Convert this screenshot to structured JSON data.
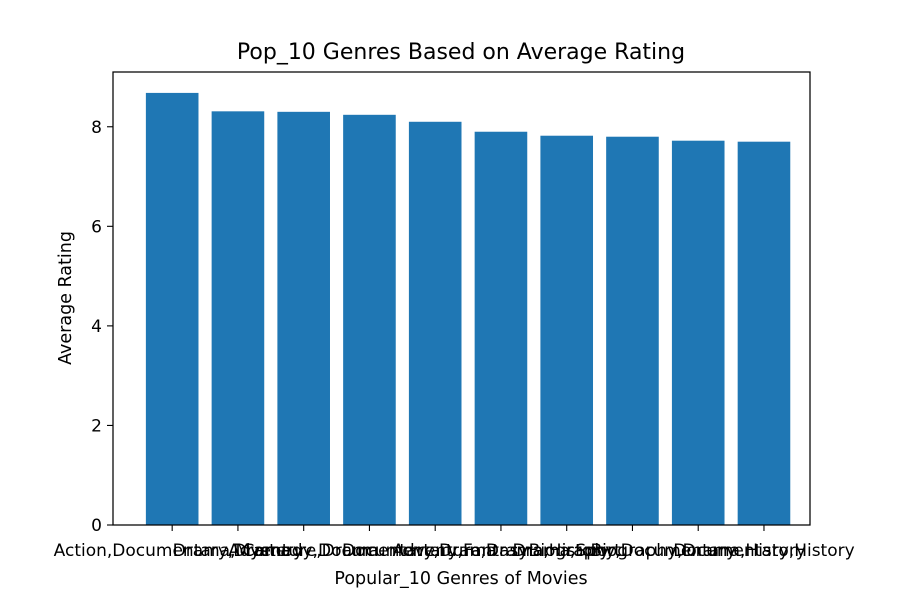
{
  "chart_data": {
    "type": "bar",
    "title": "Pop_10 Genres Based on Average Rating",
    "xlabel": "Popular_10 Genres of Movies",
    "ylabel": "Average Rating",
    "categories": [
      "Action,Documentary,Drama",
      "Drama,Mystery",
      "Adventure,Drama",
      "Comedy,Documentary,Drama",
      "Documentary,Fantasy",
      "Adventure,Drama,History",
      "Drama,Sport",
      "Biography,Documentary",
      "Biography,Drama,History",
      "Documentary,History"
    ],
    "values": [
      8.68,
      8.31,
      8.3,
      8.24,
      8.1,
      7.9,
      7.82,
      7.8,
      7.72,
      7.7
    ],
    "ylim": [
      0,
      9.1
    ],
    "yticks": [
      0,
      2,
      4,
      6,
      8
    ],
    "grid": false,
    "bar_color": "#1f77b4"
  }
}
